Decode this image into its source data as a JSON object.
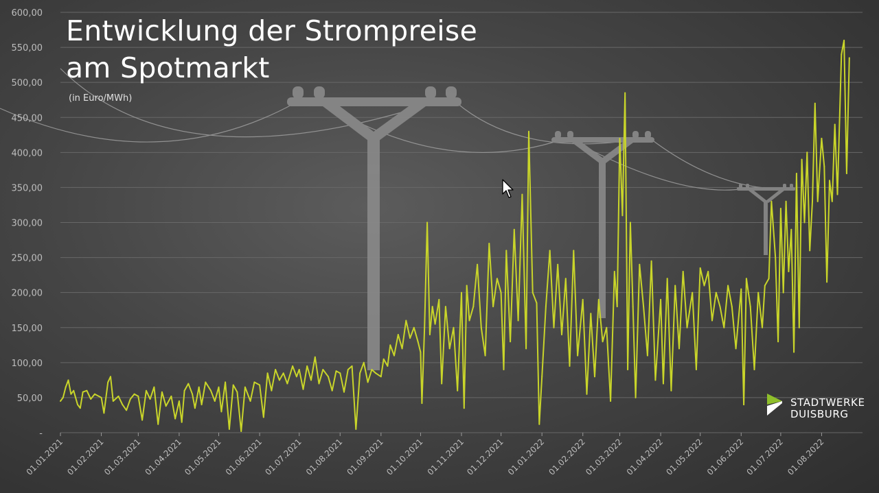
{
  "title_line1": "Entwicklung der Strompreise",
  "title_line2": "am Spotmarkt",
  "subtitle": "(in Euro/MWh)",
  "logo": {
    "line1": "STADTWERKE",
    "line2": "DUISBURG"
  },
  "colors": {
    "line": "#c9d52a",
    "logo_green": "#8fbf2b",
    "grid": "#686868",
    "axis_text": "#bdbdbd"
  },
  "icons": {
    "cursor": "mouse-pointer-icon",
    "logo": "stadtwerke-logo-icon",
    "background": "power-pylon-illustration"
  },
  "chart_data": {
    "type": "line",
    "title": "Entwicklung der Strompreise am Spotmarkt",
    "ylabel": "(in Euro/MWh)",
    "xlabel": "",
    "ylim": [
      0,
      600
    ],
    "grid": true,
    "y_ticks": [
      "-",
      "50,00",
      "100,00",
      "150,00",
      "200,00",
      "250,00",
      "300,00",
      "350,00",
      "400,00",
      "450,00",
      "500,00",
      "550,00",
      "600,00"
    ],
    "x_ticks": [
      {
        "date": "2021-01-01",
        "label": "01.01.2021"
      },
      {
        "date": "2021-02-01",
        "label": "01.02.2021"
      },
      {
        "date": "2021-03-01",
        "label": "01.03.2021"
      },
      {
        "date": "2021-04-01",
        "label": "01.04.2021"
      },
      {
        "date": "2021-05-01",
        "label": "01.05.2021"
      },
      {
        "date": "2021-06-01",
        "label": "01.06.2021"
      },
      {
        "date": "2021-07-01",
        "label": "01.07.2021"
      },
      {
        "date": "2021-08-01",
        "label": "01.08.2021"
      },
      {
        "date": "2021-09-01",
        "label": "01.09.2021"
      },
      {
        "date": "2021-10-01",
        "label": "01.10.2021"
      },
      {
        "date": "2021-11-01",
        "label": "01.11.2021"
      },
      {
        "date": "2021-12-01",
        "label": "01.12.2021"
      },
      {
        "date": "2022-01-01",
        "label": "01.01.2022"
      },
      {
        "date": "2022-02-01",
        "label": "01.02.2022"
      },
      {
        "date": "2022-03-01",
        "label": "01.03.2022"
      },
      {
        "date": "2022-04-01",
        "label": "01.04.2022"
      },
      {
        "date": "2022-05-01",
        "label": "01.05.2022"
      },
      {
        "date": "2022-06-01",
        "label": "01.06.2022"
      },
      {
        "date": "2022-07-01",
        "label": "01.07.2022"
      },
      {
        "date": "2022-08-01",
        "label": "01.08.2022"
      }
    ],
    "series": [
      {
        "points": [
          [
            "2021-01-01",
            45
          ],
          [
            "2021-01-03",
            50
          ],
          [
            "2021-01-05",
            65
          ],
          [
            "2021-01-07",
            75
          ],
          [
            "2021-01-09",
            55
          ],
          [
            "2021-01-11",
            60
          ],
          [
            "2021-01-14",
            40
          ],
          [
            "2021-01-16",
            35
          ],
          [
            "2021-01-18",
            58
          ],
          [
            "2021-01-21",
            60
          ],
          [
            "2021-01-24",
            48
          ],
          [
            "2021-01-27",
            55
          ],
          [
            "2021-02-01",
            50
          ],
          [
            "2021-02-03",
            28
          ],
          [
            "2021-02-06",
            72
          ],
          [
            "2021-02-08",
            80
          ],
          [
            "2021-02-10",
            45
          ],
          [
            "2021-02-14",
            52
          ],
          [
            "2021-02-17",
            40
          ],
          [
            "2021-02-20",
            32
          ],
          [
            "2021-02-23",
            48
          ],
          [
            "2021-02-26",
            55
          ],
          [
            "2021-03-01",
            52
          ],
          [
            "2021-03-04",
            18
          ],
          [
            "2021-03-07",
            60
          ],
          [
            "2021-03-10",
            48
          ],
          [
            "2021-03-13",
            65
          ],
          [
            "2021-03-16",
            12
          ],
          [
            "2021-03-19",
            58
          ],
          [
            "2021-03-22",
            38
          ],
          [
            "2021-03-26",
            52
          ],
          [
            "2021-03-29",
            20
          ],
          [
            "2021-04-01",
            45
          ],
          [
            "2021-04-03",
            15
          ],
          [
            "2021-04-05",
            60
          ],
          [
            "2021-04-08",
            70
          ],
          [
            "2021-04-11",
            55
          ],
          [
            "2021-04-13",
            35
          ],
          [
            "2021-04-16",
            65
          ],
          [
            "2021-04-18",
            40
          ],
          [
            "2021-04-21",
            72
          ],
          [
            "2021-04-25",
            60
          ],
          [
            "2021-04-28",
            45
          ],
          [
            "2021-05-01",
            65
          ],
          [
            "2021-05-03",
            30
          ],
          [
            "2021-05-06",
            72
          ],
          [
            "2021-05-09",
            5
          ],
          [
            "2021-05-12",
            68
          ],
          [
            "2021-05-15",
            58
          ],
          [
            "2021-05-18",
            2
          ],
          [
            "2021-05-21",
            65
          ],
          [
            "2021-05-25",
            45
          ],
          [
            "2021-05-28",
            72
          ],
          [
            "2021-06-01",
            68
          ],
          [
            "2021-06-04",
            22
          ],
          [
            "2021-06-07",
            85
          ],
          [
            "2021-06-10",
            60
          ],
          [
            "2021-06-13",
            90
          ],
          [
            "2021-06-16",
            75
          ],
          [
            "2021-06-19",
            85
          ],
          [
            "2021-06-22",
            70
          ],
          [
            "2021-06-26",
            95
          ],
          [
            "2021-06-29",
            80
          ],
          [
            "2021-07-01",
            90
          ],
          [
            "2021-07-04",
            62
          ],
          [
            "2021-07-07",
            95
          ],
          [
            "2021-07-10",
            75
          ],
          [
            "2021-07-13",
            108
          ],
          [
            "2021-07-16",
            70
          ],
          [
            "2021-07-19",
            90
          ],
          [
            "2021-07-23",
            80
          ],
          [
            "2021-07-26",
            60
          ],
          [
            "2021-07-29",
            88
          ],
          [
            "2021-08-01",
            85
          ],
          [
            "2021-08-04",
            58
          ],
          [
            "2021-08-07",
            90
          ],
          [
            "2021-08-10",
            95
          ],
          [
            "2021-08-13",
            5
          ],
          [
            "2021-08-16",
            85
          ],
          [
            "2021-08-19",
            100
          ],
          [
            "2021-08-22",
            72
          ],
          [
            "2021-08-25",
            90
          ],
          [
            "2021-08-28",
            85
          ],
          [
            "2021-09-01",
            80
          ],
          [
            "2021-09-03",
            105
          ],
          [
            "2021-09-06",
            95
          ],
          [
            "2021-09-08",
            125
          ],
          [
            "2021-09-11",
            110
          ],
          [
            "2021-09-14",
            140
          ],
          [
            "2021-09-17",
            120
          ],
          [
            "2021-09-20",
            160
          ],
          [
            "2021-09-23",
            135
          ],
          [
            "2021-09-26",
            150
          ],
          [
            "2021-09-29",
            130
          ],
          [
            "2021-10-01",
            115
          ],
          [
            "2021-10-02",
            42
          ],
          [
            "2021-10-04",
            150
          ],
          [
            "2021-10-06",
            300
          ],
          [
            "2021-10-08",
            140
          ],
          [
            "2021-10-10",
            180
          ],
          [
            "2021-10-12",
            155
          ],
          [
            "2021-10-15",
            190
          ],
          [
            "2021-10-17",
            70
          ],
          [
            "2021-10-20",
            180
          ],
          [
            "2021-10-23",
            120
          ],
          [
            "2021-10-26",
            150
          ],
          [
            "2021-10-29",
            60
          ],
          [
            "2021-11-01",
            200
          ],
          [
            "2021-11-03",
            35
          ],
          [
            "2021-11-05",
            210
          ],
          [
            "2021-11-07",
            160
          ],
          [
            "2021-11-10",
            180
          ],
          [
            "2021-11-13",
            240
          ],
          [
            "2021-11-16",
            150
          ],
          [
            "2021-11-19",
            110
          ],
          [
            "2021-11-22",
            270
          ],
          [
            "2021-11-25",
            180
          ],
          [
            "2021-11-28",
            220
          ],
          [
            "2021-12-01",
            200
          ],
          [
            "2021-12-03",
            90
          ],
          [
            "2021-12-05",
            260
          ],
          [
            "2021-12-08",
            130
          ],
          [
            "2021-12-11",
            290
          ],
          [
            "2021-12-14",
            160
          ],
          [
            "2021-12-17",
            340
          ],
          [
            "2021-12-20",
            120
          ],
          [
            "2021-12-22",
            430
          ],
          [
            "2021-12-25",
            200
          ],
          [
            "2021-12-28",
            185
          ],
          [
            "2021-12-30",
            12
          ],
          [
            "2022-01-01",
            80
          ],
          [
            "2022-01-04",
            180
          ],
          [
            "2022-01-07",
            260
          ],
          [
            "2022-01-10",
            150
          ],
          [
            "2022-01-13",
            240
          ],
          [
            "2022-01-16",
            140
          ],
          [
            "2022-01-19",
            220
          ],
          [
            "2022-01-22",
            95
          ],
          [
            "2022-01-25",
            260
          ],
          [
            "2022-01-28",
            110
          ],
          [
            "2022-02-01",
            190
          ],
          [
            "2022-02-04",
            55
          ],
          [
            "2022-02-07",
            170
          ],
          [
            "2022-02-10",
            80
          ],
          [
            "2022-02-13",
            190
          ],
          [
            "2022-02-16",
            130
          ],
          [
            "2022-02-19",
            150
          ],
          [
            "2022-02-22",
            45
          ],
          [
            "2022-02-25",
            230
          ],
          [
            "2022-02-27",
            180
          ],
          [
            "2022-03-01",
            420
          ],
          [
            "2022-03-03",
            310
          ],
          [
            "2022-03-05",
            485
          ],
          [
            "2022-03-07",
            90
          ],
          [
            "2022-03-09",
            300
          ],
          [
            "2022-03-11",
            180
          ],
          [
            "2022-03-13",
            50
          ],
          [
            "2022-03-16",
            240
          ],
          [
            "2022-03-19",
            180
          ],
          [
            "2022-03-22",
            110
          ],
          [
            "2022-03-25",
            245
          ],
          [
            "2022-03-28",
            75
          ],
          [
            "2022-04-01",
            190
          ],
          [
            "2022-04-03",
            70
          ],
          [
            "2022-04-06",
            220
          ],
          [
            "2022-04-09",
            60
          ],
          [
            "2022-04-12",
            210
          ],
          [
            "2022-04-15",
            120
          ],
          [
            "2022-04-18",
            230
          ],
          [
            "2022-04-21",
            150
          ],
          [
            "2022-04-25",
            200
          ],
          [
            "2022-04-28",
            90
          ],
          [
            "2022-05-01",
            235
          ],
          [
            "2022-05-04",
            210
          ],
          [
            "2022-05-07",
            230
          ],
          [
            "2022-05-10",
            160
          ],
          [
            "2022-05-13",
            200
          ],
          [
            "2022-05-16",
            180
          ],
          [
            "2022-05-19",
            150
          ],
          [
            "2022-05-22",
            210
          ],
          [
            "2022-05-25",
            180
          ],
          [
            "2022-05-28",
            120
          ],
          [
            "2022-06-01",
            205
          ],
          [
            "2022-06-03",
            40
          ],
          [
            "2022-06-05",
            220
          ],
          [
            "2022-06-08",
            180
          ],
          [
            "2022-06-11",
            90
          ],
          [
            "2022-06-14",
            200
          ],
          [
            "2022-06-17",
            150
          ],
          [
            "2022-06-19",
            210
          ],
          [
            "2022-06-22",
            220
          ],
          [
            "2022-06-24",
            330
          ],
          [
            "2022-06-27",
            250
          ],
          [
            "2022-06-29",
            130
          ],
          [
            "2022-07-01",
            320
          ],
          [
            "2022-07-03",
            200
          ],
          [
            "2022-07-05",
            330
          ],
          [
            "2022-07-07",
            230
          ],
          [
            "2022-07-09",
            290
          ],
          [
            "2022-07-11",
            115
          ],
          [
            "2022-07-13",
            370
          ],
          [
            "2022-07-15",
            150
          ],
          [
            "2022-07-17",
            390
          ],
          [
            "2022-07-19",
            300
          ],
          [
            "2022-07-21",
            400
          ],
          [
            "2022-07-23",
            260
          ],
          [
            "2022-07-25",
            330
          ],
          [
            "2022-07-27",
            470
          ],
          [
            "2022-07-29",
            330
          ],
          [
            "2022-08-01",
            420
          ],
          [
            "2022-08-03",
            380
          ],
          [
            "2022-08-05",
            215
          ],
          [
            "2022-08-07",
            360
          ],
          [
            "2022-08-09",
            330
          ],
          [
            "2022-08-11",
            440
          ],
          [
            "2022-08-13",
            340
          ],
          [
            "2022-08-16",
            540
          ],
          [
            "2022-08-18",
            560
          ],
          [
            "2022-08-20",
            370
          ],
          [
            "2022-08-22",
            535
          ]
        ]
      }
    ]
  }
}
